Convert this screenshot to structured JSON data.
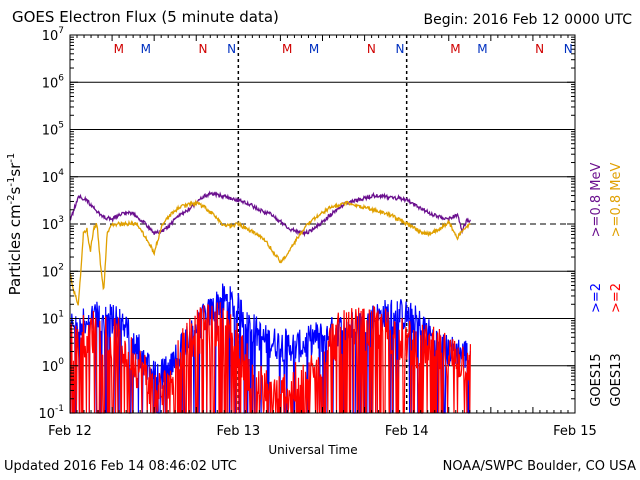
{
  "title": "GOES Electron Flux (5 minute data)",
  "begin_label": "Begin: 2016 Feb 12 0000 UTC",
  "updated_label": "Updated 2016 Feb 14 08:46:02 UTC",
  "credit_label": "NOAA/SWPC Boulder, CO USA",
  "chart_data": {
    "type": "line",
    "title": "GOES Electron Flux (5 minute data)",
    "xlabel": "Universal Time",
    "ylabel_parts": [
      "Particles cm",
      "-2",
      "s",
      "-1",
      "sr",
      "-1"
    ],
    "x_unit": "days since 2016-02-12 00:00 UTC",
    "xlim": [
      0,
      3
    ],
    "ylim_log10": [
      -1,
      7
    ],
    "y_scale": "log",
    "x_ticks": [
      {
        "value": 0,
        "label": "Feb 12"
      },
      {
        "value": 1,
        "label": "Feb 13"
      },
      {
        "value": 2,
        "label": "Feb 14"
      },
      {
        "value": 3,
        "label": "Feb 15"
      }
    ],
    "y_ticks": [
      {
        "exp": -1,
        "base": "10",
        "sup": "-1"
      },
      {
        "exp": 0,
        "base": "10",
        "sup": "0"
      },
      {
        "exp": 1,
        "base": "10",
        "sup": "1"
      },
      {
        "exp": 2,
        "base": "10",
        "sup": "2"
      },
      {
        "exp": 3,
        "base": "10",
        "sup": "3"
      },
      {
        "exp": 4,
        "base": "10",
        "sup": "4"
      },
      {
        "exp": 5,
        "base": "10",
        "sup": "5"
      },
      {
        "exp": 6,
        "base": "10",
        "sup": "6"
      },
      {
        "exp": 7,
        "base": "10",
        "sup": "7"
      }
    ],
    "threshold_log10": 3,
    "markers": [
      {
        "label": "M",
        "t": 0.29,
        "color": "#d00000"
      },
      {
        "label": "M",
        "t": 0.45,
        "color": "#0030c0"
      },
      {
        "label": "N",
        "t": 0.79,
        "color": "#d00000"
      },
      {
        "label": "N",
        "t": 0.96,
        "color": "#0030c0"
      },
      {
        "label": "M",
        "t": 1.29,
        "color": "#d00000"
      },
      {
        "label": "M",
        "t": 1.45,
        "color": "#0030c0"
      },
      {
        "label": "N",
        "t": 1.79,
        "color": "#d00000"
      },
      {
        "label": "N",
        "t": 1.96,
        "color": "#0030c0"
      },
      {
        "label": "M",
        "t": 2.29,
        "color": "#d00000"
      },
      {
        "label": "M",
        "t": 2.45,
        "color": "#0030c0"
      },
      {
        "label": "N",
        "t": 2.79,
        "color": "#d00000"
      },
      {
        "label": "N",
        "t": 2.96,
        "color": "#0030c0"
      }
    ],
    "legend": [
      {
        "text": ">=0.8 MeV",
        "color": "#e0a000"
      },
      {
        "text": ">=0.8 MeV",
        "color": "#6a0f8e"
      },
      {
        "text": ">=2",
        "color": "#ff0000"
      },
      {
        "text": ">=2",
        "color": "#0000ff"
      },
      {
        "text": "GOES13",
        "color": "#000000"
      },
      {
        "text": "GOES15",
        "color": "#000000"
      }
    ],
    "series": [
      {
        "name": "GOES15 >=0.8 MeV",
        "color": "#6a0f8e",
        "style": "smooth",
        "x": [
          0.0,
          0.05,
          0.1,
          0.15,
          0.2,
          0.25,
          0.3,
          0.35,
          0.4,
          0.45,
          0.5,
          0.55,
          0.6,
          0.65,
          0.7,
          0.75,
          0.8,
          0.85,
          0.9,
          0.95,
          1.0,
          1.05,
          1.1,
          1.15,
          1.2,
          1.25,
          1.3,
          1.35,
          1.4,
          1.45,
          1.5,
          1.55,
          1.6,
          1.65,
          1.7,
          1.75,
          1.8,
          1.85,
          1.9,
          1.95,
          2.0,
          2.05,
          2.1,
          2.15,
          2.2,
          2.25,
          2.3,
          2.33,
          2.36,
          2.38
        ],
        "log10": [
          3.05,
          3.6,
          3.5,
          3.3,
          3.15,
          3.1,
          3.2,
          3.25,
          3.15,
          3.0,
          2.8,
          2.85,
          3.0,
          3.2,
          3.3,
          3.45,
          3.6,
          3.65,
          3.6,
          3.55,
          3.5,
          3.45,
          3.35,
          3.25,
          3.2,
          3.05,
          2.9,
          2.85,
          2.8,
          2.9,
          3.05,
          3.2,
          3.35,
          3.45,
          3.5,
          3.55,
          3.6,
          3.6,
          3.55,
          3.55,
          3.5,
          3.4,
          3.3,
          3.2,
          3.15,
          3.1,
          3.2,
          2.85,
          3.1,
          3.05
        ]
      },
      {
        "name": "GOES13 >=0.8 MeV",
        "color": "#e0a000",
        "style": "smooth",
        "x": [
          0.0,
          0.02,
          0.05,
          0.08,
          0.1,
          0.12,
          0.14,
          0.16,
          0.18,
          0.2,
          0.22,
          0.25,
          0.3,
          0.4,
          0.5,
          0.55,
          0.6,
          0.65,
          0.7,
          0.75,
          0.8,
          0.85,
          0.9,
          0.95,
          1.0,
          1.05,
          1.1,
          1.15,
          1.2,
          1.25,
          1.3,
          1.35,
          1.4,
          1.45,
          1.5,
          1.55,
          1.6,
          1.65,
          1.7,
          1.75,
          1.8,
          1.85,
          1.9,
          1.95,
          2.0,
          2.05,
          2.1,
          2.15,
          2.2,
          2.25,
          2.3,
          2.33,
          2.36,
          2.38
        ],
        "log10": [
          2.0,
          1.6,
          1.3,
          2.8,
          2.9,
          2.4,
          2.9,
          3.0,
          2.2,
          1.55,
          2.8,
          3.0,
          3.0,
          3.0,
          2.4,
          3.0,
          3.2,
          3.35,
          3.4,
          3.45,
          3.35,
          3.2,
          3.0,
          2.95,
          3.0,
          2.9,
          2.8,
          2.7,
          2.45,
          2.2,
          2.4,
          2.7,
          2.95,
          3.1,
          3.25,
          3.35,
          3.4,
          3.45,
          3.4,
          3.35,
          3.3,
          3.25,
          3.2,
          3.1,
          3.0,
          2.9,
          2.8,
          2.8,
          2.9,
          3.05,
          2.7,
          2.85,
          2.95,
          3.0
        ]
      },
      {
        "name": "GOES15 >=2 MeV",
        "color": "#0000ff",
        "style": "noisy",
        "x": [
          0.0,
          0.05,
          0.1,
          0.15,
          0.2,
          0.25,
          0.3,
          0.35,
          0.4,
          0.45,
          0.5,
          0.55,
          0.6,
          0.65,
          0.7,
          0.75,
          0.8,
          0.85,
          0.9,
          0.95,
          1.0,
          1.05,
          1.1,
          1.15,
          1.2,
          1.25,
          1.3,
          1.35,
          1.4,
          1.45,
          1.5,
          1.55,
          1.6,
          1.65,
          1.7,
          1.75,
          1.8,
          1.85,
          1.9,
          1.95,
          2.0,
          2.05,
          2.1,
          2.15,
          2.2,
          2.25,
          2.3,
          2.35,
          2.38
        ],
        "log10": [
          0.8,
          0.7,
          1.0,
          1.05,
          1.0,
          0.95,
          0.9,
          0.7,
          0.4,
          0.1,
          -0.2,
          -0.2,
          0.0,
          0.3,
          0.6,
          0.8,
          1.0,
          1.2,
          1.4,
          1.35,
          1.2,
          1.0,
          0.75,
          0.55,
          0.5,
          0.45,
          0.45,
          0.4,
          0.45,
          0.6,
          0.6,
          0.7,
          0.75,
          0.8,
          0.85,
          0.9,
          1.0,
          1.05,
          1.1,
          1.1,
          1.05,
          0.95,
          0.8,
          0.6,
          0.4,
          0.3,
          0.3,
          0.25,
          0.3
        ],
        "jitter": 0.35,
        "dropout_prob": 0.15
      },
      {
        "name": "GOES13 >=2 MeV",
        "color": "#ff0000",
        "style": "noisy",
        "x": [
          0.0,
          0.05,
          0.1,
          0.15,
          0.2,
          0.25,
          0.3,
          0.35,
          0.4,
          0.45,
          0.5,
          0.55,
          0.6,
          0.65,
          0.7,
          0.75,
          0.8,
          0.85,
          0.9,
          0.95,
          1.0,
          1.05,
          1.1,
          1.15,
          1.2,
          1.25,
          1.3,
          1.35,
          1.4,
          1.45,
          1.5,
          1.55,
          1.6,
          1.65,
          1.7,
          1.75,
          1.8,
          1.85,
          1.9,
          1.95,
          2.0,
          2.05,
          2.1,
          2.15,
          2.2,
          2.25,
          2.3,
          2.35,
          2.38
        ],
        "log10": [
          0.4,
          0.6,
          0.7,
          0.75,
          0.7,
          0.6,
          0.5,
          0.3,
          0.0,
          -0.2,
          -0.5,
          -0.6,
          -0.2,
          0.3,
          0.6,
          0.7,
          0.8,
          0.85,
          0.9,
          0.8,
          0.4,
          0.0,
          -0.3,
          -0.5,
          -0.6,
          -0.6,
          -0.5,
          -0.4,
          -0.3,
          -0.1,
          0.2,
          0.5,
          0.65,
          0.7,
          0.75,
          0.75,
          0.8,
          0.8,
          0.75,
          0.6,
          0.5,
          0.45,
          0.4,
          0.35,
          0.3,
          0.2,
          0.15,
          0.1,
          0.1
        ],
        "jitter": 0.5,
        "dropout_prob": 0.3
      }
    ]
  }
}
